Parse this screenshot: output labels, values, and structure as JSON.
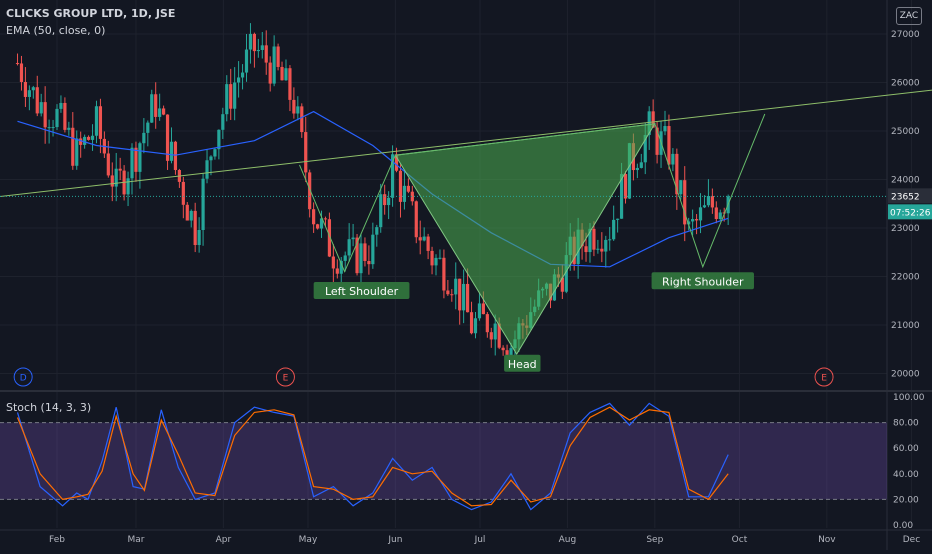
{
  "header": {
    "title": "CLICKS GROUP LTD, 1D, JSE",
    "ema_label": "EMA (50, close, 0)",
    "stoch_label": "Stoch (14, 3, 3)",
    "currency_badge": "ZAC"
  },
  "price_badges": {
    "last_price": "23652",
    "countdown": "07:52:26"
  },
  "annotations": [
    {
      "label": "Left Shoulder"
    },
    {
      "label": "Head"
    },
    {
      "label": "Right Shoulder"
    }
  ],
  "event_markers": [
    "D",
    "E",
    "E"
  ],
  "colors": {
    "background": "#131722",
    "grid": "#1e222d",
    "up": "#26a69a",
    "down": "#ef5350",
    "ema": "#2962ff",
    "pattern_fill": "#4caf50",
    "label_bg": "#2f6f3b",
    "stoch_k": "#2962ff",
    "stoch_d": "#ff6d00",
    "stoch_band": "#7e57c2",
    "marker_d": "#2962ff",
    "marker_e": "#ef5350"
  },
  "chart_data": [
    {
      "type": "candlestick",
      "title": "CLICKS GROUP LTD, 1D, JSE",
      "y_ticks": [
        20000,
        21000,
        22000,
        23000,
        24000,
        25000,
        26000,
        27000
      ],
      "ylim": [
        19700,
        27700
      ],
      "x_ticks": [
        "Feb",
        "Mar",
        "Apr",
        "May",
        "Jun",
        "Jul",
        "Aug",
        "Sep",
        "Oct",
        "Nov",
        "Dec"
      ],
      "last_price": 23652,
      "price_anchors": [
        {
          "date": "2021-01-18",
          "close": 26400
        },
        {
          "date": "2021-01-25",
          "close": 25600
        },
        {
          "date": "2021-02-01",
          "close": 25300
        },
        {
          "date": "2021-02-08",
          "close": 24500
        },
        {
          "date": "2021-02-15",
          "close": 25100
        },
        {
          "date": "2021-02-22",
          "close": 23800
        },
        {
          "date": "2021-03-01",
          "close": 24600
        },
        {
          "date": "2021-03-08",
          "close": 25600
        },
        {
          "date": "2021-03-15",
          "close": 24200
        },
        {
          "date": "2021-03-22",
          "close": 23000
        },
        {
          "date": "2021-03-29",
          "close": 25000
        },
        {
          "date": "2021-04-05",
          "close": 26000
        },
        {
          "date": "2021-04-12",
          "close": 26700
        },
        {
          "date": "2021-04-19",
          "close": 26300
        },
        {
          "date": "2021-04-26",
          "close": 25600
        },
        {
          "date": "2021-05-03",
          "close": 23300
        },
        {
          "date": "2021-05-10",
          "close": 22500
        },
        {
          "date": "2021-05-17",
          "close": 22400
        },
        {
          "date": "2021-05-24",
          "close": 22600
        },
        {
          "date": "2021-05-31",
          "close": 24300
        },
        {
          "date": "2021-06-07",
          "close": 23200
        },
        {
          "date": "2021-06-14",
          "close": 22400
        },
        {
          "date": "2021-06-21",
          "close": 22000
        },
        {
          "date": "2021-06-28",
          "close": 21000
        },
        {
          "date": "2021-07-05",
          "close": 21100
        },
        {
          "date": "2021-07-12",
          "close": 20600
        },
        {
          "date": "2021-07-19",
          "close": 21300
        },
        {
          "date": "2021-07-26",
          "close": 21700
        },
        {
          "date": "2021-08-02",
          "close": 22400
        },
        {
          "date": "2021-08-09",
          "close": 22900
        },
        {
          "date": "2021-08-16",
          "close": 23000
        },
        {
          "date": "2021-08-23",
          "close": 24300
        },
        {
          "date": "2021-08-30",
          "close": 25000
        },
        {
          "date": "2021-09-06",
          "close": 24600
        },
        {
          "date": "2021-09-13",
          "close": 22900
        },
        {
          "date": "2021-09-20",
          "close": 23400
        },
        {
          "date": "2021-09-27",
          "close": 23652
        }
      ],
      "ema_50": [
        {
          "date": "2021-01-18",
          "value": 25200
        },
        {
          "date": "2021-02-15",
          "value": 24700
        },
        {
          "date": "2021-03-15",
          "value": 24500
        },
        {
          "date": "2021-04-12",
          "value": 24800
        },
        {
          "date": "2021-05-03",
          "value": 25400
        },
        {
          "date": "2021-05-24",
          "value": 24700
        },
        {
          "date": "2021-06-14",
          "value": 23700
        },
        {
          "date": "2021-07-05",
          "value": 22900
        },
        {
          "date": "2021-07-26",
          "value": 22250
        },
        {
          "date": "2021-08-16",
          "value": 22200
        },
        {
          "date": "2021-09-06",
          "value": 22800
        },
        {
          "date": "2021-09-27",
          "value": 23200
        }
      ],
      "neckline": [
        {
          "date": "2020-12-28",
          "value": 23550
        },
        {
          "date": "2022-01-01",
          "value": 26000
        }
      ],
      "pattern": [
        {
          "date": "2021-06-01",
          "value": 24500
        },
        {
          "date": "2021-07-14",
          "value": 20400
        },
        {
          "date": "2021-09-01",
          "value": 25150
        }
      ],
      "pattern_lines": [
        {
          "date": "2021-04-28",
          "value": 24300
        },
        {
          "date": "2021-05-14",
          "value": 22100
        },
        {
          "date": "2021-06-01",
          "value": 24500
        },
        {
          "date": "2021-09-01",
          "value": 25150
        },
        {
          "date": "2021-09-18",
          "value": 22200
        },
        {
          "date": "2021-10-10",
          "value": 25350
        }
      ],
      "annotations": [
        {
          "label": "Left Shoulder",
          "date": "2021-05-20",
          "value": 21700
        },
        {
          "label": "Head",
          "date": "2021-07-16",
          "value": 20200
        },
        {
          "label": "Right Shoulder",
          "date": "2021-09-18",
          "value": 21900
        }
      ],
      "event_markers": [
        {
          "label": "D",
          "date": "2021-01-20"
        },
        {
          "label": "E",
          "date": "2021-04-23"
        },
        {
          "label": "E",
          "date": "2021-10-31"
        }
      ]
    },
    {
      "type": "line",
      "title": "Stoch (14, 3, 3)",
      "y_ticks": [
        0,
        20,
        40,
        60,
        80,
        100
      ],
      "ylim": [
        0,
        100
      ],
      "band": [
        20,
        80
      ],
      "series": [
        {
          "key": "k",
          "values": [
            {
              "date": "2021-01-18",
              "value": 88
            },
            {
              "date": "2021-01-26",
              "value": 30
            },
            {
              "date": "2021-02-03",
              "value": 15
            },
            {
              "date": "2021-02-08",
              "value": 25
            },
            {
              "date": "2021-02-12",
              "value": 20
            },
            {
              "date": "2021-02-17",
              "value": 50
            },
            {
              "date": "2021-02-22",
              "value": 92
            },
            {
              "date": "2021-02-28",
              "value": 30
            },
            {
              "date": "2021-03-04",
              "value": 28
            },
            {
              "date": "2021-03-10",
              "value": 90
            },
            {
              "date": "2021-03-16",
              "value": 45
            },
            {
              "date": "2021-03-22",
              "value": 20
            },
            {
              "date": "2021-03-29",
              "value": 25
            },
            {
              "date": "2021-04-05",
              "value": 80
            },
            {
              "date": "2021-04-12",
              "value": 92
            },
            {
              "date": "2021-04-19",
              "value": 88
            },
            {
              "date": "2021-04-26",
              "value": 85
            },
            {
              "date": "2021-05-03",
              "value": 22
            },
            {
              "date": "2021-05-10",
              "value": 30
            },
            {
              "date": "2021-05-17",
              "value": 15
            },
            {
              "date": "2021-05-24",
              "value": 25
            },
            {
              "date": "2021-05-31",
              "value": 52
            },
            {
              "date": "2021-06-07",
              "value": 35
            },
            {
              "date": "2021-06-14",
              "value": 45
            },
            {
              "date": "2021-06-21",
              "value": 20
            },
            {
              "date": "2021-06-28",
              "value": 12
            },
            {
              "date": "2021-07-05",
              "value": 18
            },
            {
              "date": "2021-07-12",
              "value": 40
            },
            {
              "date": "2021-07-19",
              "value": 12
            },
            {
              "date": "2021-07-26",
              "value": 25
            },
            {
              "date": "2021-08-02",
              "value": 72
            },
            {
              "date": "2021-08-09",
              "value": 88
            },
            {
              "date": "2021-08-16",
              "value": 95
            },
            {
              "date": "2021-08-23",
              "value": 78
            },
            {
              "date": "2021-08-30",
              "value": 95
            },
            {
              "date": "2021-09-06",
              "value": 85
            },
            {
              "date": "2021-09-13",
              "value": 22
            },
            {
              "date": "2021-09-20",
              "value": 22
            },
            {
              "date": "2021-09-27",
              "value": 55
            }
          ]
        },
        {
          "key": "d",
          "values": [
            {
              "date": "2021-01-18",
              "value": 84
            },
            {
              "date": "2021-01-26",
              "value": 40
            },
            {
              "date": "2021-02-03",
              "value": 20
            },
            {
              "date": "2021-02-08",
              "value": 22
            },
            {
              "date": "2021-02-12",
              "value": 24
            },
            {
              "date": "2021-02-17",
              "value": 42
            },
            {
              "date": "2021-02-22",
              "value": 85
            },
            {
              "date": "2021-02-28",
              "value": 40
            },
            {
              "date": "2021-03-04",
              "value": 27
            },
            {
              "date": "2021-03-10",
              "value": 82
            },
            {
              "date": "2021-03-16",
              "value": 55
            },
            {
              "date": "2021-03-22",
              "value": 25
            },
            {
              "date": "2021-03-29",
              "value": 23
            },
            {
              "date": "2021-04-05",
              "value": 70
            },
            {
              "date": "2021-04-12",
              "value": 88
            },
            {
              "date": "2021-04-19",
              "value": 90
            },
            {
              "date": "2021-04-26",
              "value": 86
            },
            {
              "date": "2021-05-03",
              "value": 30
            },
            {
              "date": "2021-05-10",
              "value": 28
            },
            {
              "date": "2021-05-17",
              "value": 20
            },
            {
              "date": "2021-05-24",
              "value": 22
            },
            {
              "date": "2021-05-31",
              "value": 45
            },
            {
              "date": "2021-06-07",
              "value": 40
            },
            {
              "date": "2021-06-14",
              "value": 42
            },
            {
              "date": "2021-06-21",
              "value": 25
            },
            {
              "date": "2021-06-28",
              "value": 15
            },
            {
              "date": "2021-07-05",
              "value": 16
            },
            {
              "date": "2021-07-12",
              "value": 35
            },
            {
              "date": "2021-07-19",
              "value": 18
            },
            {
              "date": "2021-07-26",
              "value": 22
            },
            {
              "date": "2021-08-02",
              "value": 62
            },
            {
              "date": "2021-08-09",
              "value": 84
            },
            {
              "date": "2021-08-16",
              "value": 92
            },
            {
              "date": "2021-08-23",
              "value": 82
            },
            {
              "date": "2021-08-30",
              "value": 90
            },
            {
              "date": "2021-09-06",
              "value": 88
            },
            {
              "date": "2021-09-13",
              "value": 28
            },
            {
              "date": "2021-09-20",
              "value": 20
            },
            {
              "date": "2021-09-27",
              "value": 40
            }
          ]
        }
      ]
    }
  ]
}
